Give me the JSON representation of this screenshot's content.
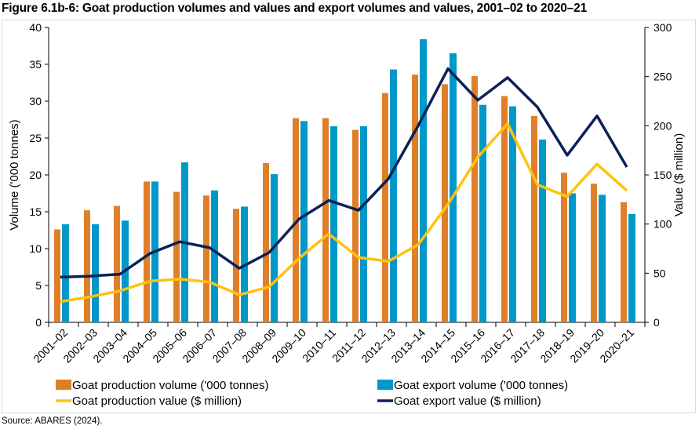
{
  "title": "Figure 6.1b-6: Goat production volumes and values and export volumes and values, 2001–02 to 2020–21",
  "source": "Source: ABARES (2024).",
  "chart_data": {
    "type": "bar+line",
    "title": "Figure 6.1b-6: Goat production volumes and values and export volumes and values, 2001–02 to 2020–21",
    "categories": [
      "2001–02",
      "2002–03",
      "2003–04",
      "2004–05",
      "2005–06",
      "2006–07",
      "2007–08",
      "2008–09",
      "2009–10",
      "2010–11",
      "2011–12",
      "2012–13",
      "2013–14",
      "2014–15",
      "2015–16",
      "2016–17",
      "2017–18",
      "2018–19",
      "2019–20",
      "2020–21"
    ],
    "ylabel": "Volume ('000 tonnes)",
    "ylim": [
      0,
      40
    ],
    "yticks": [
      "0",
      "5",
      "10",
      "15",
      "20",
      "25",
      "30",
      "35",
      "40"
    ],
    "y2label": "Value ($ million)",
    "y2lim": [
      0,
      300
    ],
    "y2ticks": [
      "0",
      "50",
      "100",
      "150",
      "200",
      "250",
      "300"
    ],
    "grid": false,
    "legend_position": "bottom",
    "series": [
      {
        "name": "Goat production volume ('000 tonnes)",
        "type": "bar",
        "axis": "left",
        "color": "#E07F2A",
        "values": [
          12.6,
          15.2,
          15.8,
          19.1,
          17.7,
          17.2,
          15.4,
          21.6,
          27.7,
          27.7,
          26.1,
          31.1,
          33.6,
          32.3,
          33.4,
          30.7,
          28.0,
          20.3,
          18.8,
          16.3
        ]
      },
      {
        "name": "Goat export volume ('000 tonnes)",
        "type": "bar",
        "axis": "left",
        "color": "#0098C8",
        "values": [
          13.3,
          13.3,
          13.8,
          19.1,
          21.7,
          17.9,
          15.7,
          20.1,
          27.3,
          26.6,
          26.6,
          34.3,
          38.4,
          36.5,
          29.5,
          29.3,
          24.8,
          17.5,
          17.3,
          14.7
        ]
      },
      {
        "name": "Goat production value ($ million)",
        "type": "line",
        "axis": "right",
        "color": "#FFC20E",
        "values": [
          21,
          26,
          32,
          42,
          44,
          41,
          28,
          36,
          65,
          90,
          66,
          62,
          79,
          120,
          168,
          202,
          140,
          128,
          161,
          134
        ]
      },
      {
        "name": "Goat export value ($ million)",
        "type": "line",
        "axis": "right",
        "color": "#0B2158",
        "values": [
          46,
          47,
          49,
          70,
          82,
          76,
          55,
          71,
          105,
          124,
          114,
          146,
          200,
          258,
          226,
          249,
          219,
          170,
          210,
          158
        ]
      }
    ]
  }
}
